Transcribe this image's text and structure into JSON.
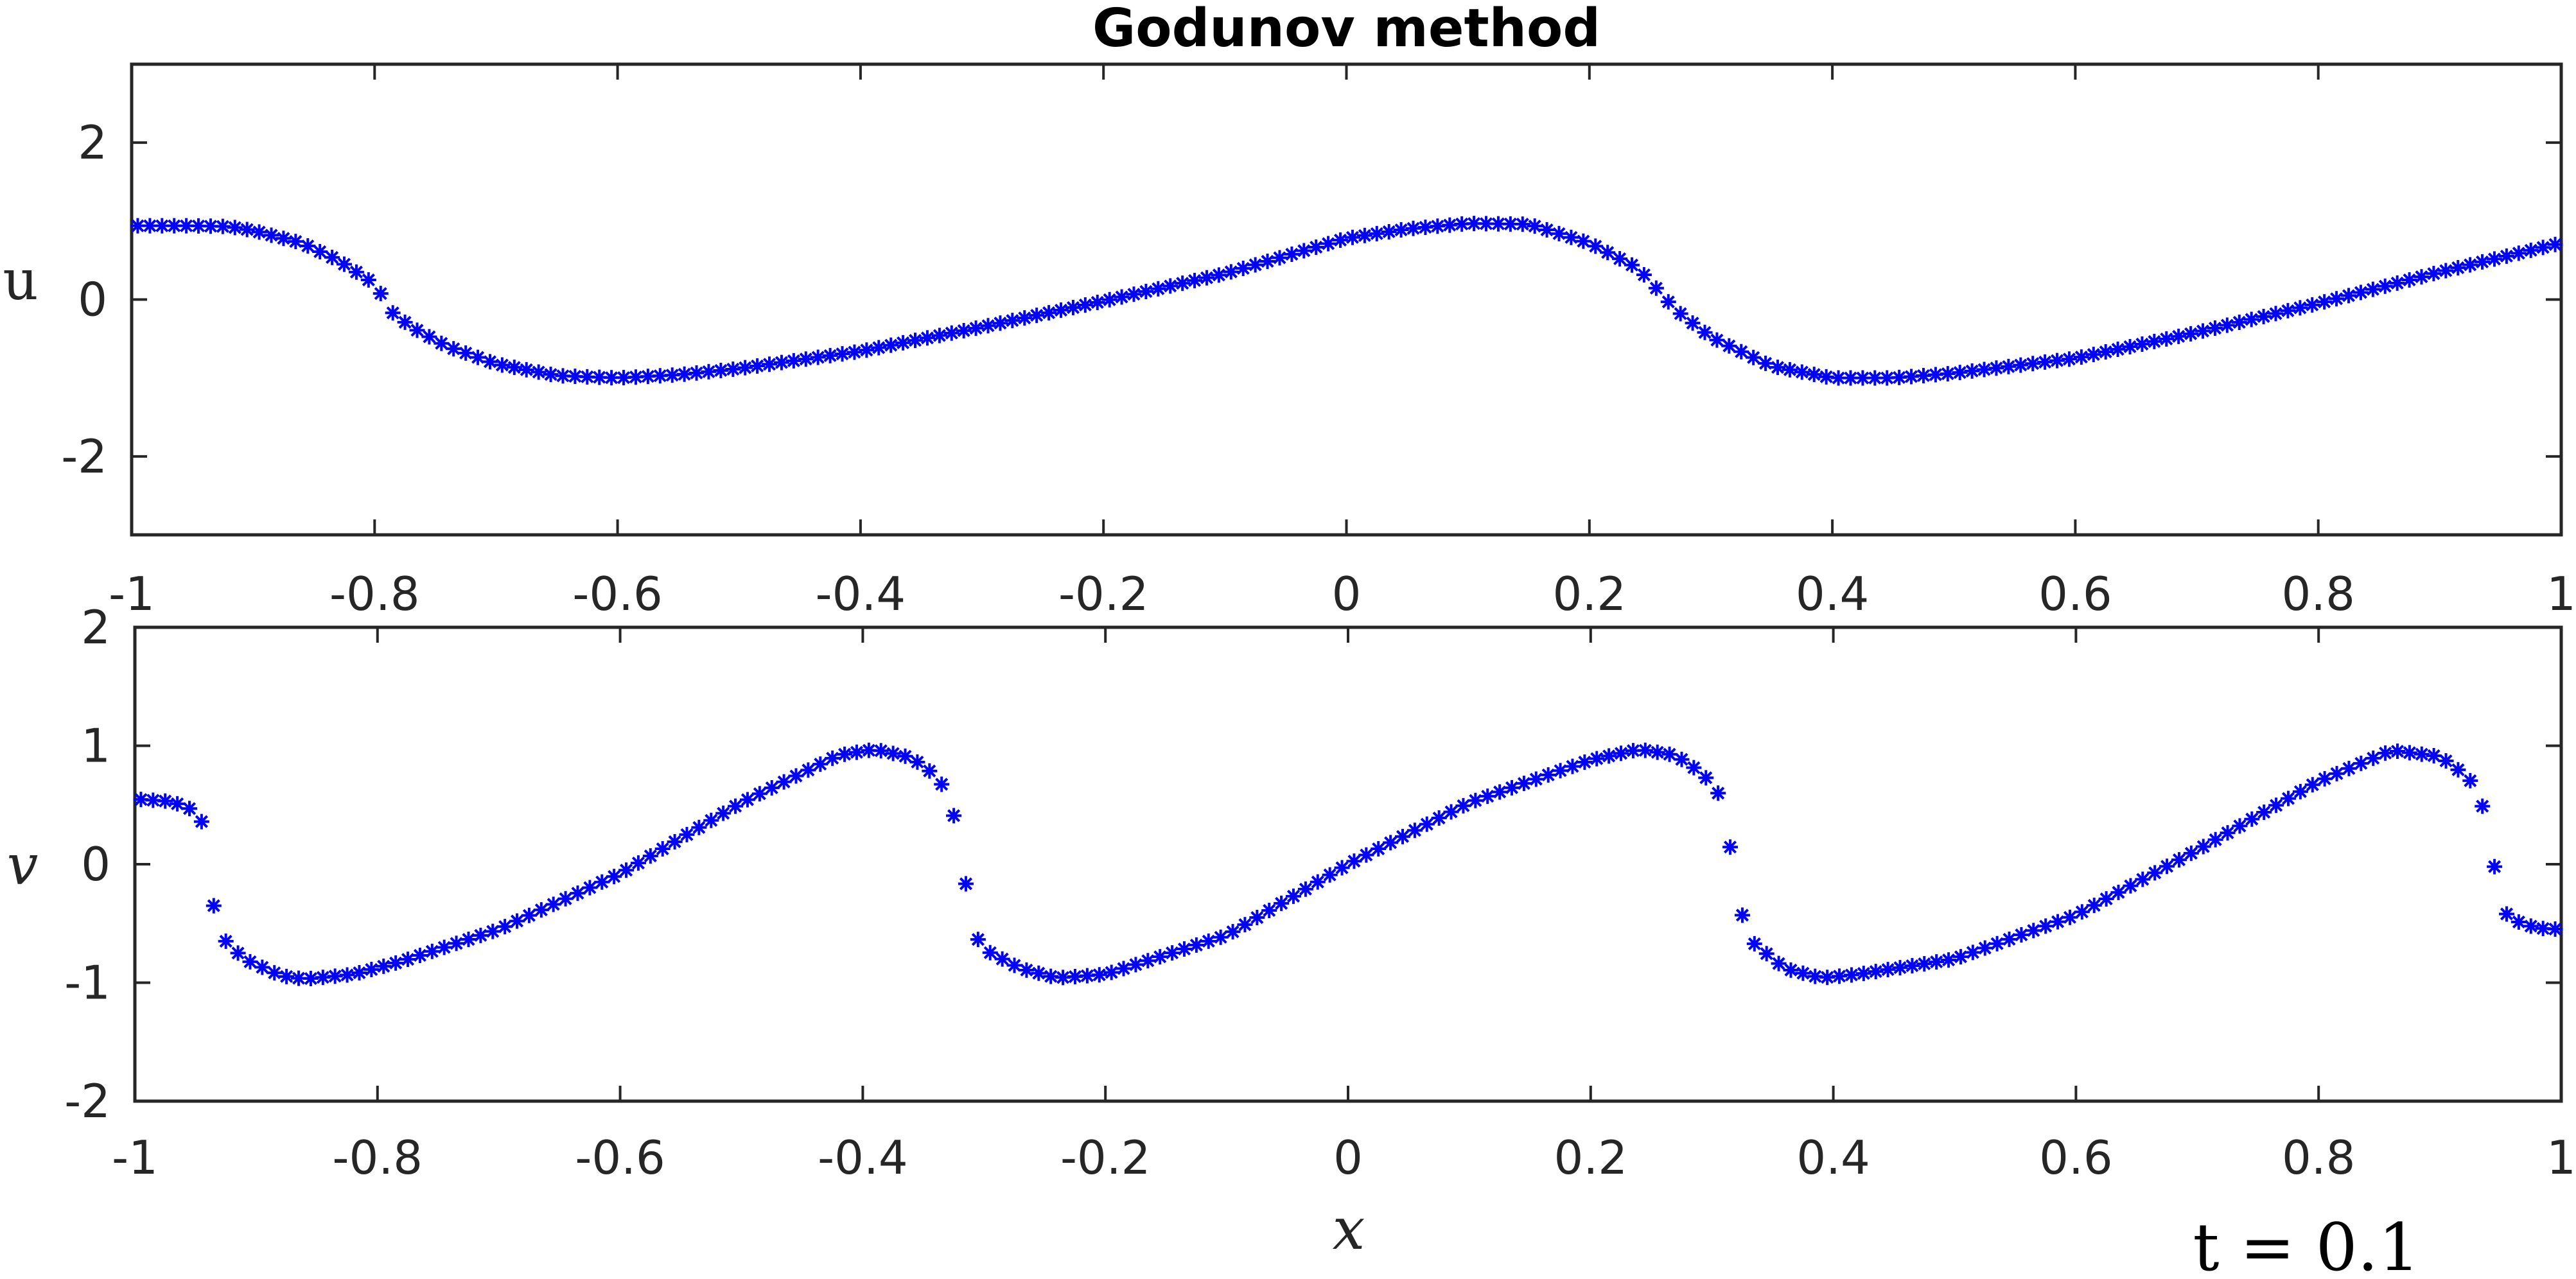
{
  "chart_data": [
    {
      "type": "scatter",
      "title": "Godunov method",
      "xlabel": "",
      "ylabel": "u",
      "xlim": [
        -1,
        1
      ],
      "ylim": [
        -3,
        3
      ],
      "xticks": [
        -1,
        -0.8,
        -0.6,
        -0.4,
        -0.2,
        0,
        0.2,
        0.4,
        0.6,
        0.8,
        1
      ],
      "xtick_labels": [
        "-1",
        "-0.8",
        "-0.6",
        "-0.4",
        "-0.2",
        "0",
        "0.2",
        "0.4",
        "0.6",
        "0.8",
        "1"
      ],
      "yticks": [
        -2,
        0,
        2
      ],
      "ytick_labels": [
        "-2",
        "0",
        "2"
      ],
      "grid": false,
      "marker": "asterisk",
      "color": "#0000ff",
      "samples": 200,
      "series": [
        {
          "points": [
            [
              -1.0,
              0.94
            ],
            [
              -0.95,
              0.94
            ],
            [
              -0.92,
              0.93
            ],
            [
              -0.9,
              0.88
            ],
            [
              -0.86,
              0.72
            ],
            [
              -0.83,
              0.5
            ],
            [
              -0.8,
              0.2
            ],
            [
              -0.785,
              -0.17
            ],
            [
              -0.77,
              -0.35
            ],
            [
              -0.74,
              -0.6
            ],
            [
              -0.7,
              -0.82
            ],
            [
              -0.65,
              -0.97
            ],
            [
              -0.6,
              -1.0
            ],
            [
              -0.55,
              -0.96
            ],
            [
              -0.5,
              -0.88
            ],
            [
              -0.4,
              -0.66
            ],
            [
              -0.3,
              -0.35
            ],
            [
              -0.2,
              -0.02
            ],
            [
              -0.1,
              0.33
            ],
            [
              0.0,
              0.78
            ],
            [
              0.05,
              0.9
            ],
            [
              0.1,
              0.97
            ],
            [
              0.15,
              0.96
            ],
            [
              0.2,
              0.72
            ],
            [
              0.24,
              0.4
            ],
            [
              0.26,
              0.06
            ],
            [
              0.27,
              -0.12
            ],
            [
              0.3,
              -0.48
            ],
            [
              0.35,
              -0.85
            ],
            [
              0.4,
              -1.0
            ],
            [
              0.45,
              -1.0
            ],
            [
              0.5,
              -0.94
            ],
            [
              0.6,
              -0.75
            ],
            [
              0.7,
              -0.42
            ],
            [
              0.8,
              -0.05
            ],
            [
              0.9,
              0.35
            ],
            [
              1.0,
              0.72
            ]
          ]
        }
      ]
    },
    {
      "type": "scatter",
      "title": "",
      "xlabel": "x",
      "ylabel": "v",
      "xlim": [
        -1,
        1
      ],
      "ylim": [
        -2,
        2
      ],
      "xticks": [
        -1,
        -0.8,
        -0.6,
        -0.4,
        -0.2,
        0,
        0.2,
        0.4,
        0.6,
        0.8,
        1
      ],
      "xtick_labels": [
        "-1",
        "-0.8",
        "-0.6",
        "-0.4",
        "-0.2",
        "0",
        "0.2",
        "0.4",
        "0.6",
        "0.8",
        "1"
      ],
      "yticks": [
        -2,
        -1,
        0,
        1,
        2
      ],
      "ytick_labels": [
        "-2",
        "-1",
        "0",
        "1",
        "2"
      ],
      "grid": false,
      "marker": "asterisk",
      "color": "#0000ff",
      "samples": 200,
      "series": [
        {
          "points": [
            [
              -1.0,
              0.55
            ],
            [
              -0.97,
              0.53
            ],
            [
              -0.955,
              0.47
            ],
            [
              -0.945,
              0.36
            ],
            [
              -0.935,
              -0.35
            ],
            [
              -0.925,
              -0.65
            ],
            [
              -0.91,
              -0.8
            ],
            [
              -0.88,
              -0.94
            ],
            [
              -0.86,
              -0.97
            ],
            [
              -0.82,
              -0.93
            ],
            [
              -0.78,
              -0.82
            ],
            [
              -0.7,
              -0.55
            ],
            [
              -0.6,
              -0.08
            ],
            [
              -0.5,
              0.52
            ],
            [
              -0.42,
              0.92
            ],
            [
              -0.39,
              0.97
            ],
            [
              -0.36,
              0.9
            ],
            [
              -0.34,
              0.75
            ],
            [
              -0.33,
              0.6
            ],
            [
              -0.32,
              0.22
            ],
            [
              -0.31,
              -0.55
            ],
            [
              -0.3,
              -0.72
            ],
            [
              -0.27,
              -0.88
            ],
            [
              -0.24,
              -0.96
            ],
            [
              -0.2,
              -0.93
            ],
            [
              -0.1,
              -0.6
            ],
            [
              0.0,
              0.0
            ],
            [
              0.1,
              0.52
            ],
            [
              0.2,
              0.88
            ],
            [
              0.24,
              0.97
            ],
            [
              0.27,
              0.92
            ],
            [
              0.29,
              0.78
            ],
            [
              0.3,
              0.68
            ],
            [
              0.31,
              0.52
            ],
            [
              0.32,
              -0.23
            ],
            [
              0.33,
              -0.63
            ],
            [
              0.36,
              -0.88
            ],
            [
              0.39,
              -0.96
            ],
            [
              0.42,
              -0.93
            ],
            [
              0.5,
              -0.8
            ],
            [
              0.6,
              -0.43
            ],
            [
              0.7,
              0.12
            ],
            [
              0.8,
              0.7
            ],
            [
              0.86,
              0.96
            ],
            [
              0.9,
              0.91
            ],
            [
              0.92,
              0.76
            ],
            [
              0.93,
              0.65
            ],
            [
              0.94,
              0.33
            ],
            [
              0.95,
              -0.37
            ],
            [
              0.96,
              -0.47
            ],
            [
              0.98,
              -0.54
            ],
            [
              1.0,
              -0.55
            ]
          ]
        }
      ]
    }
  ],
  "annotation": "t = 0.1"
}
